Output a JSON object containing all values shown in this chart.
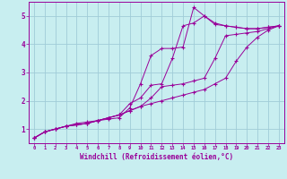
{
  "title": "",
  "xlabel": "Windchill (Refroidissement éolien,°C)",
  "ylabel": "",
  "bg_color": "#c8eef0",
  "grid_color": "#a0ccd8",
  "line_color": "#990099",
  "xlim": [
    -0.5,
    23.5
  ],
  "ylim": [
    0.5,
    5.5
  ],
  "xticks": [
    0,
    1,
    2,
    3,
    4,
    5,
    6,
    7,
    8,
    9,
    10,
    11,
    12,
    13,
    14,
    15,
    16,
    17,
    18,
    19,
    20,
    21,
    22,
    23
  ],
  "yticks": [
    1,
    2,
    3,
    4,
    5
  ],
  "lines": [
    {
      "x": [
        0,
        1,
        2,
        3,
        4,
        5,
        6,
        7,
        8,
        9,
        10,
        11,
        12,
        13,
        14,
        15,
        16,
        17,
        18,
        19,
        20,
        21,
        22,
        23
      ],
      "y": [
        0.68,
        0.9,
        1.0,
        1.1,
        1.2,
        1.25,
        1.3,
        1.35,
        1.4,
        1.75,
        2.6,
        3.6,
        3.85,
        3.85,
        3.9,
        5.3,
        5.0,
        4.7,
        4.65,
        4.6,
        4.55,
        4.55,
        4.6,
        4.65
      ]
    },
    {
      "x": [
        0,
        1,
        2,
        3,
        4,
        5,
        6,
        7,
        8,
        9,
        10,
        11,
        12,
        13,
        14,
        15,
        16,
        17,
        18,
        19,
        20,
        21,
        22,
        23
      ],
      "y": [
        0.68,
        0.9,
        1.0,
        1.1,
        1.15,
        1.2,
        1.3,
        1.4,
        1.5,
        1.9,
        2.1,
        2.55,
        2.6,
        3.5,
        4.65,
        4.75,
        5.0,
        4.75,
        4.65,
        4.6,
        4.55,
        4.55,
        4.6,
        4.65
      ]
    },
    {
      "x": [
        0,
        1,
        2,
        3,
        4,
        5,
        6,
        7,
        8,
        9,
        10,
        11,
        12,
        13,
        14,
        15,
        16,
        17,
        18,
        19,
        20,
        21,
        22,
        23
      ],
      "y": [
        0.68,
        0.9,
        1.0,
        1.1,
        1.15,
        1.2,
        1.3,
        1.4,
        1.5,
        1.65,
        1.8,
        2.1,
        2.5,
        2.55,
        2.6,
        2.7,
        2.8,
        3.5,
        4.3,
        4.35,
        4.4,
        4.45,
        4.55,
        4.65
      ]
    },
    {
      "x": [
        0,
        1,
        2,
        3,
        4,
        5,
        6,
        7,
        8,
        9,
        10,
        11,
        12,
        13,
        14,
        15,
        16,
        17,
        18,
        19,
        20,
        21,
        22,
        23
      ],
      "y": [
        0.68,
        0.9,
        1.0,
        1.1,
        1.15,
        1.2,
        1.3,
        1.4,
        1.5,
        1.65,
        1.8,
        1.9,
        2.0,
        2.1,
        2.2,
        2.3,
        2.4,
        2.6,
        2.8,
        3.4,
        3.9,
        4.25,
        4.5,
        4.65
      ]
    }
  ]
}
